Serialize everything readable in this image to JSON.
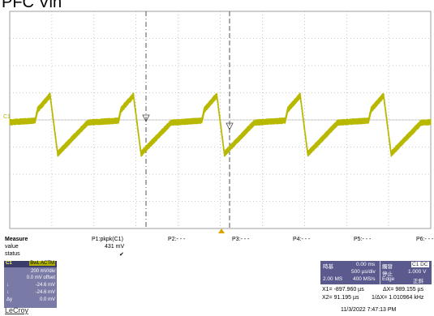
{
  "title": "PFC Vin",
  "brand": "LeCroy",
  "channel_marker": "C1",
  "colors": {
    "trace": "#b8b800",
    "grid": "#9e9e9e",
    "panel": "#7a7aa6",
    "panel_header": "#3c3c6a",
    "timebase_panel": "#5a5a8e"
  },
  "waveform": {
    "time_per_div_us": 500,
    "volts_per_div_mV": 200,
    "offset_mV": 0.0,
    "x_range_us": [
      -2500,
      2500
    ],
    "y_range_mV": [
      -800,
      800
    ],
    "description_values": {
      "period_us": 990,
      "peak_mV": 180,
      "trough_mV": -250,
      "base_mV": 0
    }
  },
  "measure": {
    "header": "Measure",
    "row_value": "value",
    "row_status": "status",
    "params": [
      {
        "label": "P1:pkpk(C1)",
        "value": "431 mV",
        "status": "✔"
      },
      {
        "label": "P2:- - -",
        "value": "",
        "status": ""
      },
      {
        "label": "P3:- - -",
        "value": "",
        "status": ""
      },
      {
        "label": "P4:- - -",
        "value": "",
        "status": ""
      },
      {
        "label": "P5:- - -",
        "value": "",
        "status": ""
      },
      {
        "label": "P6:- - -",
        "value": "",
        "status": ""
      }
    ]
  },
  "channel_panel": {
    "name": "C1",
    "tags": "BwL ACTM",
    "vdiv": "200 mV/div",
    "offset": "0.0 mV offset",
    "cursor1": "-24.6 mV",
    "cursor2": "-24.6 mV",
    "delta": "0.0 mV",
    "cursor1_label": "↓",
    "cursor2_label": "↓",
    "delta_label": "Δy"
  },
  "timebase": {
    "label": "時基",
    "delay": "0.00 ms",
    "tdiv": "500 µs/div",
    "samples": "2.00 MS",
    "rate": "400 MS/s",
    "trigger_label": "觸發",
    "trigger_ch": "C1 DC",
    "trigger_mode": "停止",
    "trigger_level": "1.000 V",
    "trigger_type": "Edge",
    "trigger_slope": "正斜"
  },
  "cursors": {
    "x1": "X1=  -897.960 µs",
    "dx": "ΔX=     989.155 µs",
    "x2": "X2=     91.195 µs",
    "inv_dx": "1/ΔX=   1.010964 kHz"
  },
  "timestamp": "11/3/2022 7:47:13 PM"
}
